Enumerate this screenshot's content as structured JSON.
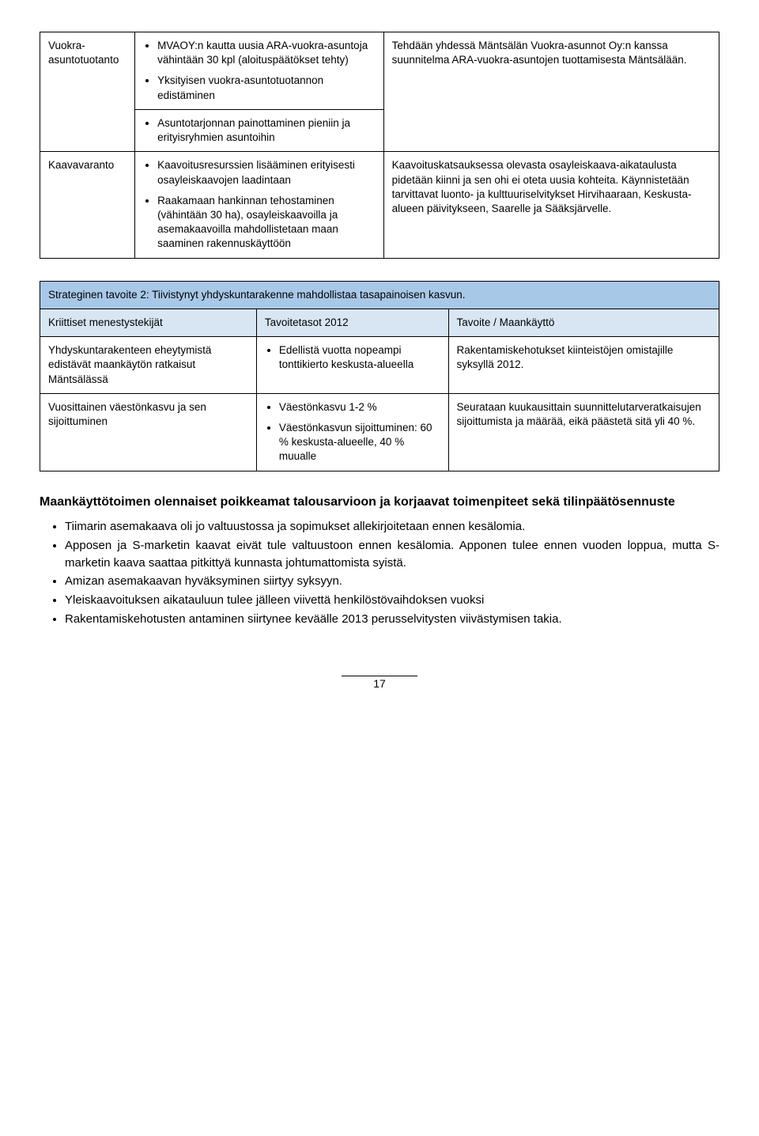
{
  "table1": {
    "rows": [
      {
        "col1": "Vuokra-asuntotuotanto",
        "col2_items": [
          "MVAOY:n kautta uusia ARA-vuokra-asuntoja vähintään 30 kpl (aloituspäätökset tehty)",
          "Yksityisen vuokra-asuntotuotannon edistäminen",
          "Asuntotarjonnan painottaminen pieniin ja erityisryhmien asuntoihin"
        ],
        "col3": "Tehdään yhdessä Mäntsälän Vuokra-asunnot Oy:n kanssa suunnitelma ARA-vuokra-asuntojen tuottamisesta Mäntsälään."
      },
      {
        "col1": "Kaavavaranto",
        "col2_items": [
          "Kaavoitusresurssien lisääminen erityisesti osayleiskaavojen laadintaan",
          "Raakamaan hankinnan tehostaminen (vähintään 30 ha), osayleiskaavoilla ja asemakaavoilla mahdollistetaan maan saaminen rakennuskäyttöön"
        ],
        "col3": "Kaavoituskatsauksessa olevasta osayleiskaava-aikataulusta pidetään kiinni ja sen ohi ei oteta uusia kohteita. Käynnistetään tarvittavat luonto- ja kulttuuriselvitykset Hirvihaaraan, Keskusta-alueen päivitykseen, Saarelle ja Sääksjärvelle."
      }
    ]
  },
  "table2": {
    "title": "Strateginen tavoite 2: Tiivistynyt yhdyskuntarakenne mahdollistaa tasapainoisen kasvun.",
    "subheader": {
      "c1": "Kriittiset menestystekijät",
      "c2": "Tavoitetasot 2012",
      "c3": "Tavoite / Maankäyttö"
    },
    "rows": [
      {
        "col1": "Yhdyskuntarakenteen eheytymistä edistävät maankäytön ratkaisut Mäntsälässä",
        "col2_items": [
          "Edellistä vuotta nopeampi tonttikierto keskusta-alueella"
        ],
        "col3": "Rakentamiskehotukset kiinteistöjen omistajille syksyllä 2012."
      },
      {
        "col1": "Vuosittainen väestönkasvu ja sen sijoittuminen",
        "col2_items": [
          "Väestönkasvu 1-2 %",
          "Väestönkasvun sijoittuminen: 60 % keskusta-alueelle, 40 % muualle"
        ],
        "col3": "Seurataan kuukausittain suunnittelutarveratkaisujen sijoittumista ja määrää, eikä päästetä sitä yli 40 %."
      }
    ]
  },
  "section_heading": "Maankäyttötoimen olennaiset poikkeamat talousarvioon ja korjaavat toimenpiteet sekä tilinpäätösennuste",
  "body_bullets": [
    "Tiimarin asemakaava oli jo valtuustossa ja sopimukset allekirjoitetaan ennen kesälomia.",
    "Apposen ja S-marketin kaavat eivät tule valtuustoon ennen kesälomia. Apponen tulee ennen vuoden loppua, mutta S-marketin kaava saattaa pitkittyä kunnasta johtumattomista syistä.",
    "Amizan asemakaavan hyväksyminen siirtyy syksyyn.",
    "Yleiskaavoituksen aikatauluun tulee jälleen viivettä henkilöstövaihdoksen vuoksi",
    "Rakentamiskehotusten antaminen siirtynee keväälle 2013 perusselvitysten viivästymisen takia."
  ],
  "page_number": "17",
  "colors": {
    "header_bg": "#a8c8e8",
    "subheader_bg": "#d8e6f4",
    "border": "#000000"
  }
}
